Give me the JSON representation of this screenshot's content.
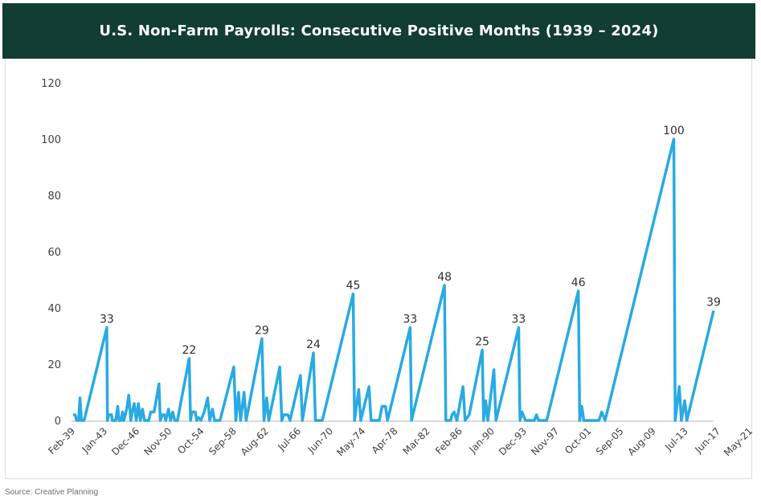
{
  "header": {
    "title": "U.S. Non-Farm Payrolls: Consecutive Positive Months (1939 – 2024)"
  },
  "footer": {
    "source": "Source: Creative Planning"
  },
  "colors": {
    "title_bg": "#113d33",
    "line": "#29aae3",
    "axis": "#d9d9d9"
  },
  "chart_data": {
    "type": "line",
    "title": "U.S. Non-Farm Payrolls: Consecutive Positive Months (1939 – 2024)",
    "xlabel": "",
    "ylabel": "",
    "ylim": [
      0,
      120
    ],
    "yticks": [
      0,
      20,
      40,
      60,
      80,
      100,
      120
    ],
    "x_unit": "months since Feb-1939",
    "xlim": [
      0,
      1030
    ],
    "xtick_labels": [
      "Feb-39",
      "Jan-43",
      "Dec-46",
      "Nov-50",
      "Oct-54",
      "Sep-58",
      "Aug-62",
      "Jul-66",
      "Jun-70",
      "May-74",
      "Apr-78",
      "Mar-82",
      "Feb-86",
      "Jan-90",
      "Dec-93",
      "Nov-97",
      "Oct-01",
      "Sep-05",
      "Aug-09",
      "Jul-13",
      "Jun-17",
      "May-21"
    ],
    "xtick_step_months": 47,
    "grid": false,
    "legend": "none",
    "series": [
      {
        "name": "Consecutive Positive Months",
        "points": [
          [
            0,
            2
          ],
          [
            3,
            2
          ],
          [
            5,
            0
          ],
          [
            8,
            0
          ],
          [
            10,
            8
          ],
          [
            12,
            0
          ],
          [
            16,
            0
          ],
          [
            49,
            33
          ],
          [
            50,
            0
          ],
          [
            52,
            2
          ],
          [
            56,
            2
          ],
          [
            57,
            0
          ],
          [
            62,
            0
          ],
          [
            65,
            5
          ],
          [
            67,
            0
          ],
          [
            70,
            0
          ],
          [
            72,
            3
          ],
          [
            74,
            0
          ],
          [
            78,
            4
          ],
          [
            81,
            9
          ],
          [
            84,
            0
          ],
          [
            86,
            3
          ],
          [
            89,
            6
          ],
          [
            92,
            0
          ],
          [
            95,
            6
          ],
          [
            98,
            0
          ],
          [
            101,
            4
          ],
          [
            104,
            0
          ],
          [
            110,
            0
          ],
          [
            113,
            3
          ],
          [
            118,
            3
          ],
          [
            125,
            13
          ],
          [
            127,
            0
          ],
          [
            130,
            2
          ],
          [
            133,
            2
          ],
          [
            135,
            0
          ],
          [
            139,
            4
          ],
          [
            142,
            0
          ],
          [
            145,
            3
          ],
          [
            148,
            0
          ],
          [
            152,
            0
          ],
          [
            169,
            22
          ],
          [
            171,
            0
          ],
          [
            173,
            3
          ],
          [
            178,
            3
          ],
          [
            180,
            0
          ],
          [
            183,
            1
          ],
          [
            186,
            0
          ],
          [
            191,
            3
          ],
          [
            196,
            8
          ],
          [
            199,
            0
          ],
          [
            203,
            4
          ],
          [
            206,
            0
          ],
          [
            214,
            0
          ],
          [
            234,
            19
          ],
          [
            237,
            0
          ],
          [
            241,
            10
          ],
          [
            244,
            0
          ],
          [
            249,
            10
          ],
          [
            252,
            0
          ],
          [
            275,
            29
          ],
          [
            278,
            0
          ],
          [
            282,
            8
          ],
          [
            285,
            0
          ],
          [
            301,
            19
          ],
          [
            304,
            0
          ],
          [
            307,
            2
          ],
          [
            313,
            2
          ],
          [
            316,
            0
          ],
          [
            331,
            16
          ],
          [
            334,
            0
          ],
          [
            350,
            24
          ],
          [
            353,
            0
          ],
          [
            363,
            0
          ],
          [
            408,
            45
          ],
          [
            410,
            0
          ],
          [
            416,
            11
          ],
          [
            419,
            0
          ],
          [
            431,
            12
          ],
          [
            434,
            0
          ],
          [
            446,
            0
          ],
          [
            450,
            5
          ],
          [
            455,
            5
          ],
          [
            458,
            0
          ],
          [
            491,
            33
          ],
          [
            493,
            0
          ],
          [
            541,
            48
          ],
          [
            543,
            0
          ],
          [
            550,
            0
          ],
          [
            552,
            2
          ],
          [
            555,
            3
          ],
          [
            559,
            0
          ],
          [
            568,
            12
          ],
          [
            571,
            0
          ],
          [
            577,
            2
          ],
          [
            596,
            25
          ],
          [
            598,
            0
          ],
          [
            601,
            7
          ],
          [
            604,
            0
          ],
          [
            613,
            18
          ],
          [
            616,
            0
          ],
          [
            649,
            33
          ],
          [
            651,
            0
          ],
          [
            654,
            3
          ],
          [
            659,
            0
          ],
          [
            672,
            0
          ],
          [
            675,
            2
          ],
          [
            678,
            0
          ],
          [
            690,
            0
          ],
          [
            736,
            46
          ],
          [
            738,
            0
          ],
          [
            741,
            5
          ],
          [
            744,
            0
          ],
          [
            766,
            0
          ],
          [
            770,
            3
          ],
          [
            775,
            0
          ],
          [
            875,
            100
          ],
          [
            877,
            0
          ],
          [
            883,
            12
          ],
          [
            886,
            0
          ],
          [
            891,
            7
          ],
          [
            894,
            0
          ],
          [
            933,
            39
          ]
        ],
        "annotations": [
          {
            "x": 49,
            "y": 33,
            "label": "33"
          },
          {
            "x": 169,
            "y": 22,
            "label": "22"
          },
          {
            "x": 275,
            "y": 29,
            "label": "29"
          },
          {
            "x": 350,
            "y": 24,
            "label": "24"
          },
          {
            "x": 408,
            "y": 45,
            "label": "45"
          },
          {
            "x": 491,
            "y": 33,
            "label": "33"
          },
          {
            "x": 541,
            "y": 48,
            "label": "48"
          },
          {
            "x": 596,
            "y": 25,
            "label": "25"
          },
          {
            "x": 649,
            "y": 33,
            "label": "33"
          },
          {
            "x": 736,
            "y": 46,
            "label": "46"
          },
          {
            "x": 875,
            "y": 100,
            "label": "100"
          },
          {
            "x": 933,
            "y": 39,
            "label": "39"
          }
        ]
      }
    ]
  }
}
